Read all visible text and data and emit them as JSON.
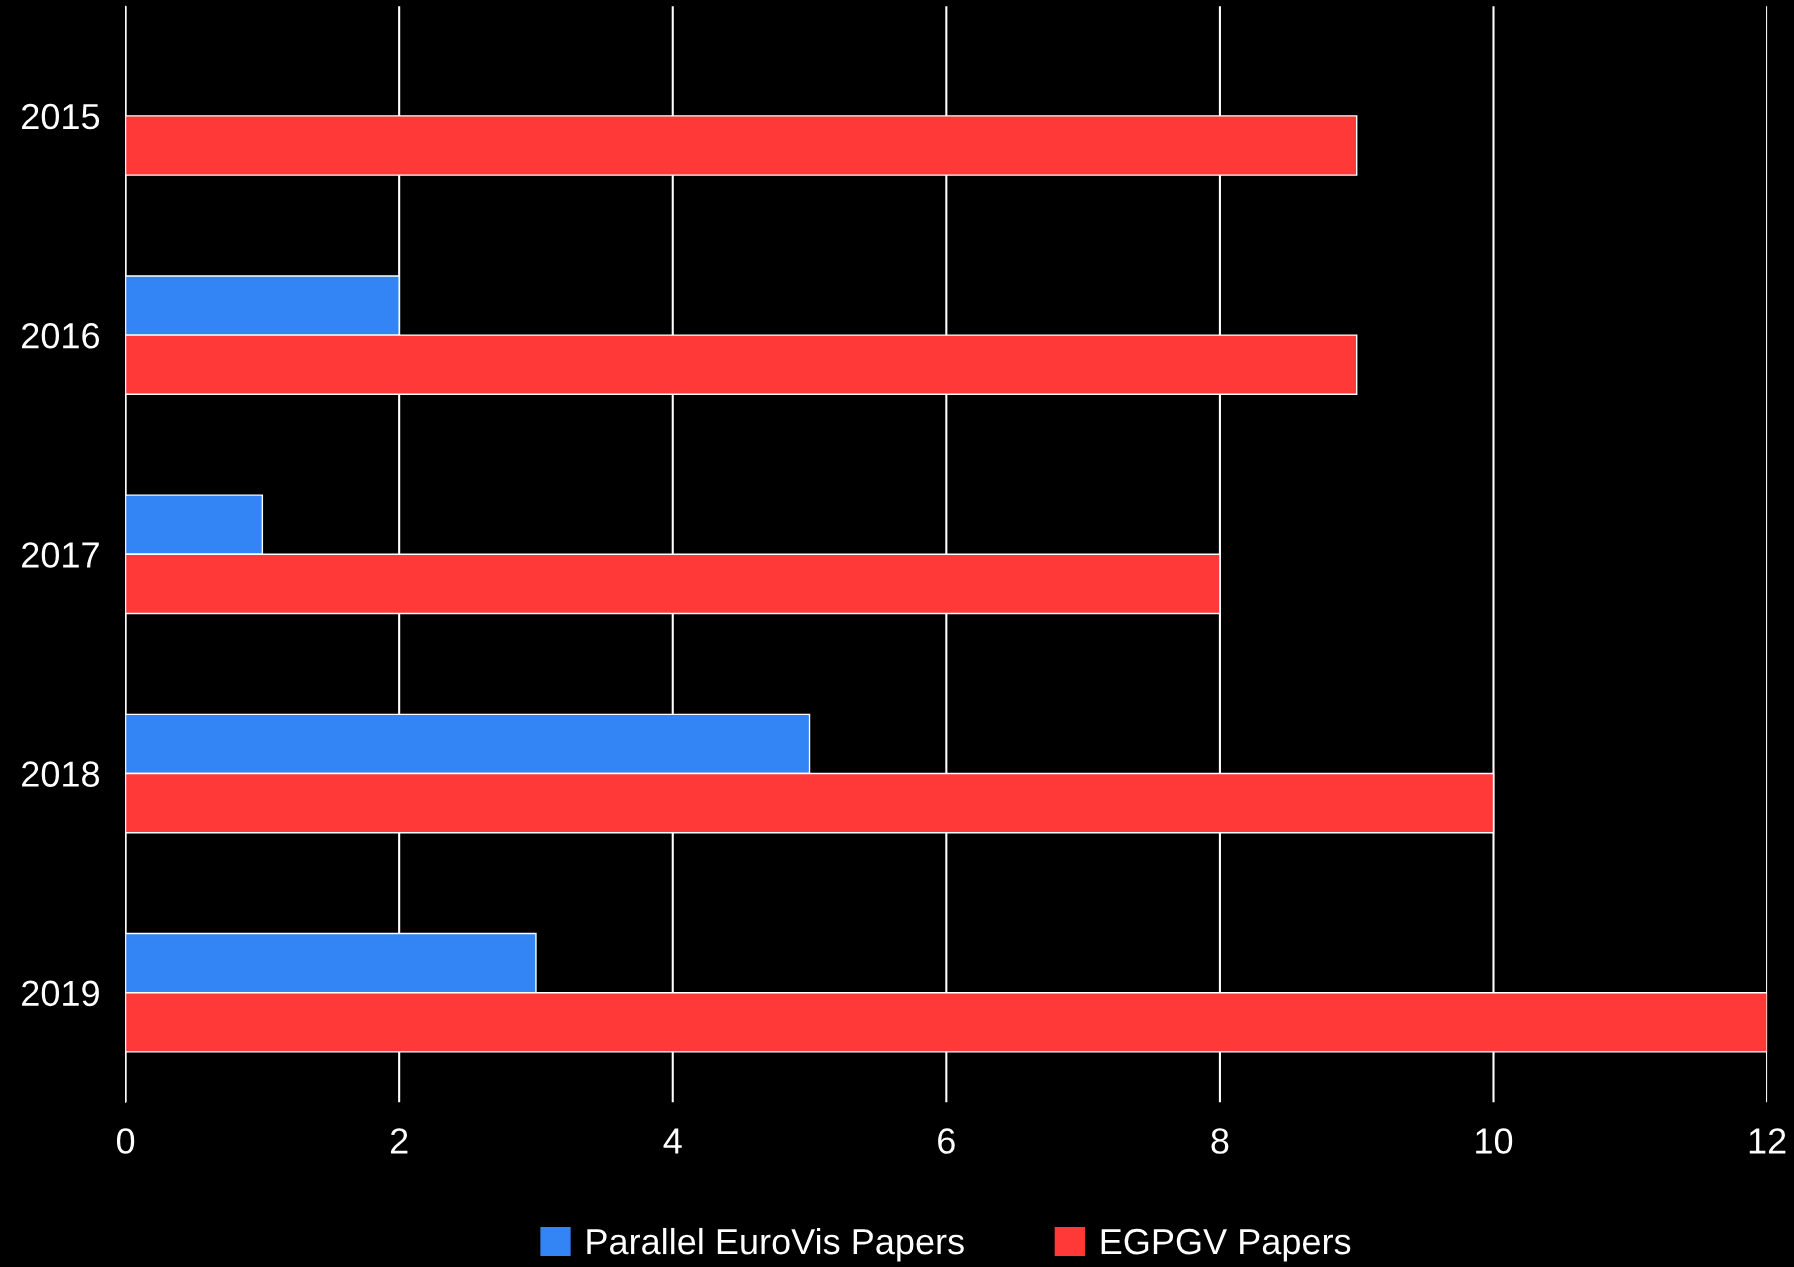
{
  "chart_data": {
    "type": "bar",
    "orientation": "horizontal",
    "categories": [
      "2015",
      "2016",
      "2017",
      "2018",
      "2019"
    ],
    "series": [
      {
        "name": "Parallel EuroVis Papers",
        "color": "#3385f5",
        "values": [
          null,
          2,
          1,
          5,
          3
        ]
      },
      {
        "name": "EGPGV Papers",
        "color": "#ff3838",
        "values": [
          9,
          9,
          8,
          10,
          12
        ]
      }
    ],
    "xlim": [
      0,
      12
    ],
    "xticks": [
      0,
      2,
      4,
      6,
      8,
      10,
      12
    ],
    "grid": "x",
    "legend": "bottom"
  }
}
